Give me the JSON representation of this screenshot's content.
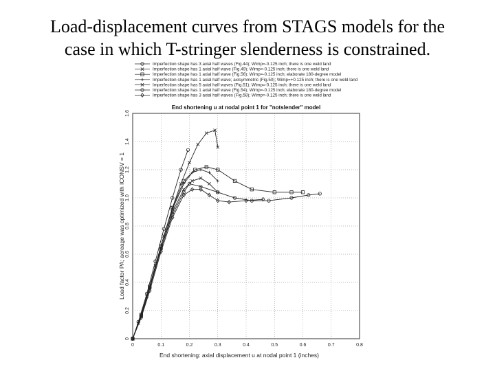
{
  "slide": {
    "title_line1": "Load-displacement curves from STAGS models for the",
    "title_line2": "case in which T-stringer slenderness is constrained."
  },
  "chart_data": {
    "type": "line",
    "title": "End shortening u at nodal point 1 for \"notslender\" model",
    "xlabel": "End shortening: axial displacement u at nodal point 1 (inches)",
    "ylabel": "Load factor PA; acreage was optimized with ICONSV = 1",
    "xlim": [
      0,
      0.8
    ],
    "ylim": [
      0,
      1.6
    ],
    "xticks": [
      "0",
      "0.1",
      "0.2",
      "0.3",
      "0.4",
      "0.5",
      "0.6",
      "0.7",
      "0.8"
    ],
    "yticks": [
      "0",
      "0.2",
      "0.4",
      "0.6",
      "0.8",
      "1.0",
      "1.2",
      "1.4",
      "1.6"
    ],
    "grid": true,
    "legend_position": "top",
    "series": [
      {
        "name": "Imperfection shape has 3 axial half waves (Fig.44); Wimp=-0.125 inch; there is one weld land",
        "marker": "o",
        "x": [
          0,
          0.02,
          0.05,
          0.08,
          0.11,
          0.14,
          0.17,
          0.195
        ],
        "y": [
          0,
          0.12,
          0.32,
          0.55,
          0.78,
          1.0,
          1.2,
          1.34
        ]
      },
      {
        "name": "Imperfection shape has 1 axial half wave (Fig.49); Wimp=-0.125 inch; there is one weld land",
        "marker": "x",
        "x": [
          0,
          0.02,
          0.05,
          0.08,
          0.11,
          0.14,
          0.17,
          0.2,
          0.23,
          0.26,
          0.29,
          0.3
        ],
        "y": [
          0,
          0.11,
          0.3,
          0.52,
          0.73,
          0.93,
          1.1,
          1.25,
          1.38,
          1.46,
          1.48,
          1.36
        ]
      },
      {
        "name": "Imperfection shape has 1 axial half wave (Fig.56); Wimp=-0.125 inch; elaborate 180-degree model",
        "marker": "s",
        "x": [
          0,
          0.03,
          0.06,
          0.1,
          0.14,
          0.18,
          0.22,
          0.26,
          0.3,
          0.36,
          0.42,
          0.5,
          0.56,
          0.6
        ],
        "y": [
          0,
          0.17,
          0.37,
          0.66,
          0.93,
          1.12,
          1.2,
          1.22,
          1.2,
          1.12,
          1.06,
          1.04,
          1.04,
          1.04
        ]
      },
      {
        "name": "Imperfection shape has 1 axial half wave; axisymmetric (Fig.50); Wimp=+0.125 inch; there is one weld land",
        "marker": "+",
        "x": [
          0,
          0.03,
          0.06,
          0.1,
          0.14,
          0.18,
          0.21,
          0.24,
          0.27,
          0.3
        ],
        "y": [
          0,
          0.17,
          0.37,
          0.66,
          0.92,
          1.1,
          1.18,
          1.2,
          1.18,
          1.12
        ]
      },
      {
        "name": "Imperfection shape has 5 axial half waves (Fig.51); Wimp=-0.125 inch; there is one weld land",
        "marker": "x",
        "x": [
          0,
          0.03,
          0.06,
          0.1,
          0.14,
          0.18,
          0.21,
          0.24,
          0.27,
          0.3
        ],
        "y": [
          0,
          0.16,
          0.36,
          0.64,
          0.9,
          1.06,
          1.12,
          1.14,
          1.1,
          1.04
        ]
      },
      {
        "name": "Imperfection shape has 1 axial half wave (Fig.54); Wimp=-0.125 inch; elaborate 180-degree model",
        "marker": "o",
        "x": [
          0,
          0.03,
          0.06,
          0.1,
          0.14,
          0.18,
          0.2,
          0.24,
          0.3,
          0.36,
          0.42,
          0.48,
          0.56,
          0.62,
          0.66
        ],
        "y": [
          0,
          0.16,
          0.36,
          0.64,
          0.88,
          1.04,
          1.1,
          1.08,
          1.04,
          1.0,
          0.98,
          0.98,
          1.0,
          1.02,
          1.03
        ]
      },
      {
        "name": "Imperfection shape has 3 axial half waves (Fig.58); Wimp=-0.125 inch; there is one weld land",
        "marker": "d",
        "x": [
          0,
          0.03,
          0.06,
          0.1,
          0.14,
          0.18,
          0.21,
          0.24,
          0.27,
          0.3,
          0.34,
          0.4,
          0.46
        ],
        "y": [
          0,
          0.15,
          0.34,
          0.62,
          0.86,
          1.02,
          1.06,
          1.06,
          1.02,
          0.98,
          0.97,
          0.98,
          0.99
        ]
      }
    ]
  }
}
